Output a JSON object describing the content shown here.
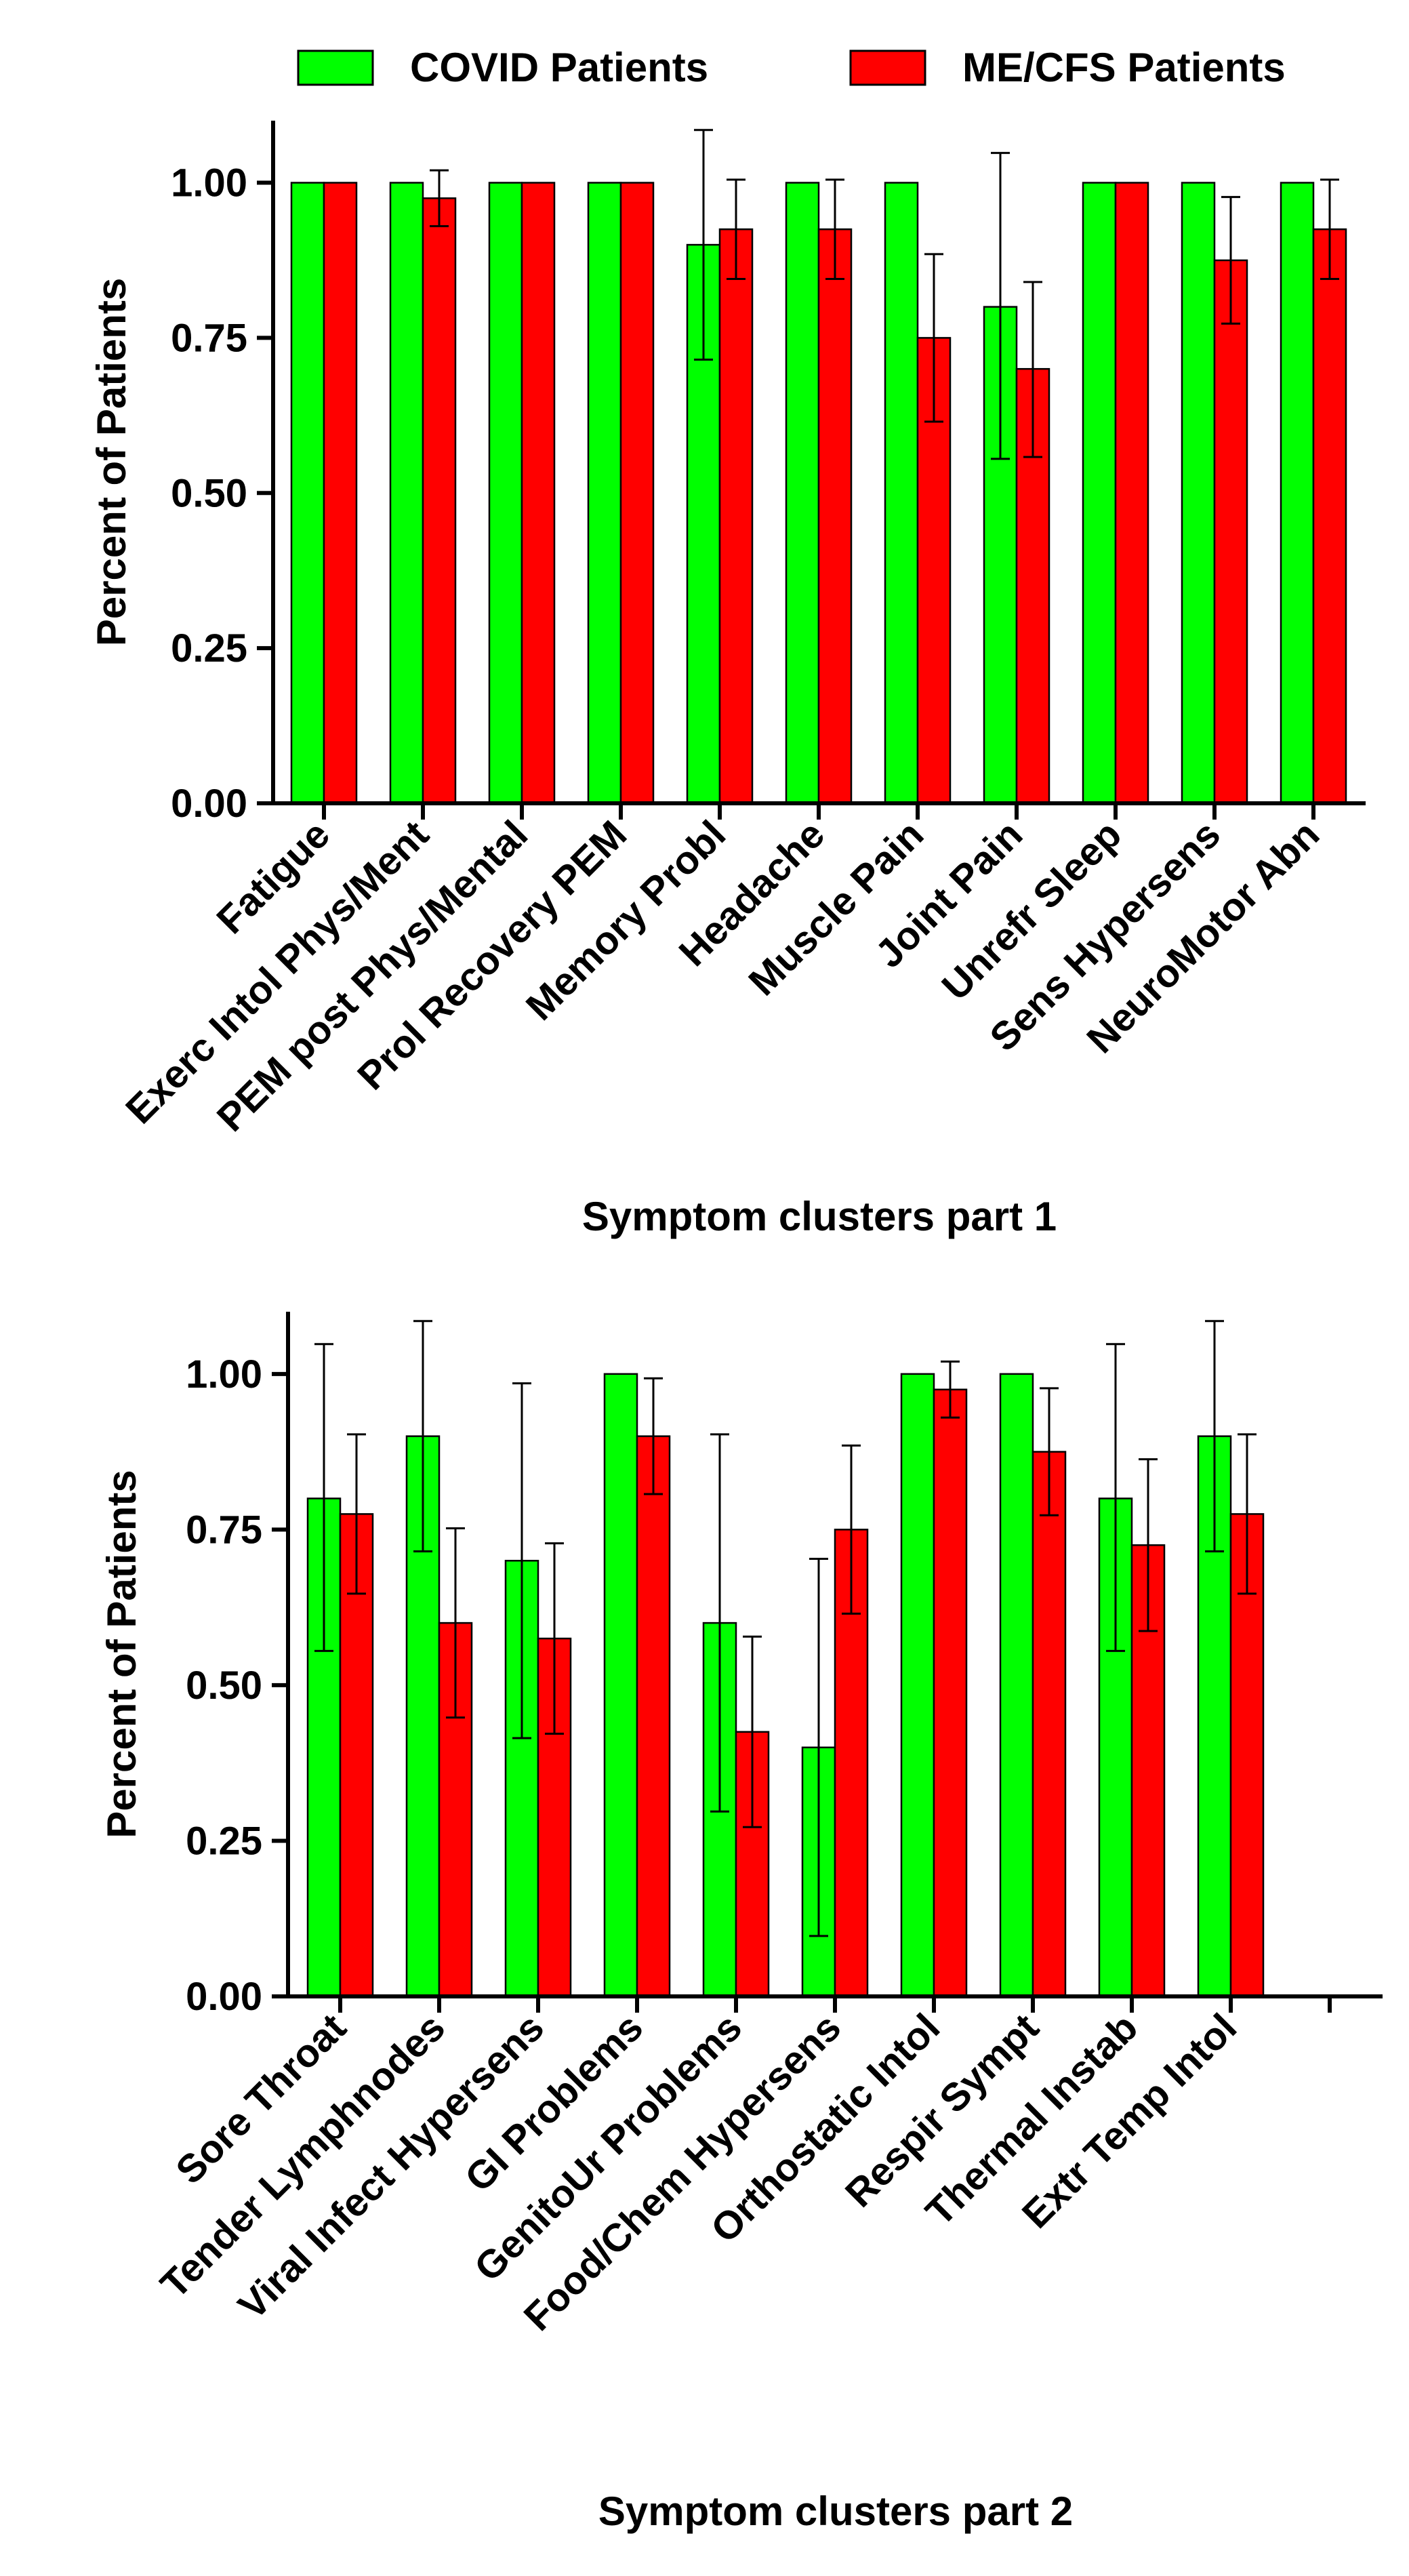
{
  "legend": {
    "covid_label": "COVID Patients",
    "mecfs_label": "ME/CFS Patients",
    "covid_color": "#00ff00",
    "mecfs_color": "#ff0000"
  },
  "chart_data": [
    {
      "type": "bar",
      "title": "",
      "xlabel": "Symptom clusters part 1",
      "ylabel": "Percent of Patients",
      "ylim": [
        0,
        1.1
      ],
      "yticks": [
        "0.00",
        "0.25",
        "0.50",
        "0.75",
        "1.00"
      ],
      "categories": [
        "Fatigue",
        "Exerc Intol Phys/Ment",
        "PEM post Phys/Mental",
        "Prol Recovery PEM",
        "Memory Probl",
        "Headache",
        "Muscle Pain",
        "Joint Pain",
        "Unrefr Sleep",
        "Sens Hypersens",
        "NeuroMotor Abn"
      ],
      "series": [
        {
          "name": "COVID Patients",
          "values": [
            1.0,
            1.0,
            1.0,
            1.0,
            0.9,
            1.0,
            1.0,
            0.8,
            1.0,
            1.0,
            1.0
          ],
          "err_low": [
            null,
            null,
            null,
            null,
            0.715,
            null,
            null,
            0.555,
            null,
            null,
            null
          ],
          "err_high": [
            null,
            null,
            null,
            null,
            1.085,
            null,
            null,
            1.048,
            null,
            null,
            null
          ]
        },
        {
          "name": "ME/CFS Patients",
          "values": [
            1.0,
            0.975,
            1.0,
            1.0,
            0.925,
            0.925,
            0.75,
            0.7,
            1.0,
            0.875,
            0.925
          ],
          "err_low": [
            null,
            0.93,
            null,
            null,
            0.845,
            0.845,
            0.615,
            0.558,
            null,
            0.773,
            0.845
          ],
          "err_high": [
            null,
            1.02,
            null,
            null,
            1.005,
            1.005,
            0.885,
            0.84,
            null,
            0.977,
            1.005
          ]
        }
      ]
    },
    {
      "type": "bar",
      "title": "",
      "xlabel": "Symptom clusters part 2",
      "ylabel": "Percent of Patients",
      "ylim": [
        0,
        1.1
      ],
      "yticks": [
        "0.00",
        "0.25",
        "0.50",
        "0.75",
        "1.00"
      ],
      "categories": [
        "Sore Throat",
        "Tender Lymphnodes",
        "Viral Infect Hypersens",
        "GI Problems",
        "GenitoUr Problems",
        "Food/Chem Hypersens",
        "Orthostatic Intol",
        "Respir Sympt",
        "Thermal Instab",
        "Extr Temp Intol"
      ],
      "series": [
        {
          "name": "COVID Patients",
          "values": [
            0.8,
            0.9,
            0.7,
            1.0,
            0.6,
            0.4,
            1.0,
            1.0,
            0.8,
            0.9
          ],
          "err_low": [
            0.555,
            0.715,
            0.415,
            null,
            0.297,
            0.097,
            null,
            null,
            0.555,
            0.715
          ],
          "err_high": [
            1.048,
            1.085,
            0.985,
            null,
            0.903,
            0.703,
            null,
            null,
            1.048,
            1.085
          ]
        },
        {
          "name": "ME/CFS Patients",
          "values": [
            0.775,
            0.6,
            0.575,
            0.9,
            0.425,
            0.75,
            0.975,
            0.875,
            0.725,
            0.775
          ],
          "err_low": [
            0.647,
            0.448,
            0.422,
            0.807,
            0.272,
            0.615,
            0.93,
            0.773,
            0.587,
            0.647
          ],
          "err_high": [
            0.903,
            0.752,
            0.728,
            0.993,
            0.578,
            0.885,
            1.02,
            0.977,
            0.863,
            0.903
          ]
        }
      ]
    }
  ]
}
